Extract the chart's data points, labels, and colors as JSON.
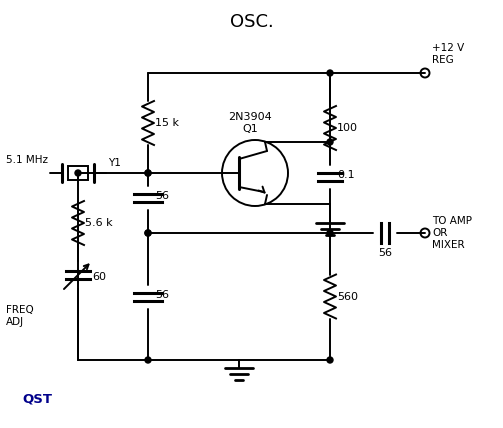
{
  "title": "OSC.",
  "bg_color": "#ffffff",
  "line_color": "#000000",
  "qst_color": "#00008B",
  "labels": {
    "r1": "15 k",
    "r2": "5.6 k",
    "r3": "100",
    "r4": "560",
    "c1": "56",
    "c2": "56",
    "c3": "0.1",
    "c4": "56",
    "vc": "60",
    "xtal": "Y1",
    "freq": "5.1 MHz",
    "transistor_line1": "2N3904",
    "transistor_line2": "Q1",
    "supply": "+12 V\nREG",
    "output": "TO AMP\nOR\nMIXER",
    "adj": "FREQ\nADJ",
    "qst": "QST"
  }
}
